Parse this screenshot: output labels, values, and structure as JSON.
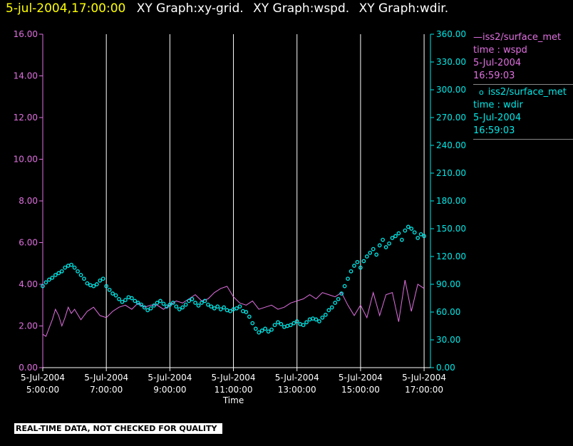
{
  "header": {
    "timestamp": "5-jul-2004,17:00:00",
    "graphs": [
      "XY Graph:xy-grid.",
      "XY Graph:wspd.",
      "XY Graph:wdir."
    ]
  },
  "legend": [
    {
      "marker": "—",
      "name": "iss2/surface_met",
      "field": "time : wspd",
      "date": "5-Jul-2004",
      "time": "16:59:03",
      "color": "#e070e0"
    },
    {
      "marker": "o",
      "name": "iss2/surface_met",
      "field": "time : wdir",
      "date": "5-Jul-2004",
      "time": "16:59:03",
      "color": "#00e8e8"
    }
  ],
  "footer": {
    "quality_note": "REAL-TIME DATA, NOT CHECKED FOR QUALITY"
  },
  "chart_data": {
    "type": "line",
    "xlabel": "Time",
    "x_ticks": [
      {
        "date": "5-Jul-2004",
        "time": "5:00:00"
      },
      {
        "date": "5-Jul-2004",
        "time": "7:00:00"
      },
      {
        "date": "5-Jul-2004",
        "time": "9:00:00"
      },
      {
        "date": "5-Jul-2004",
        "time": "11:00:00"
      },
      {
        "date": "5-Jul-2004",
        "time": "13:00:00"
      },
      {
        "date": "5-Jul-2004",
        "time": "15:00:00"
      },
      {
        "date": "5-Jul-2004",
        "time": "17:00:00"
      }
    ],
    "x_tick_hours": [
      5,
      7,
      9,
      11,
      13,
      15,
      17
    ],
    "xlim_hours": [
      5,
      17.2
    ],
    "vertical_grid": true,
    "y_left": {
      "ylim": [
        0,
        16
      ],
      "ticks": [
        "0.00",
        "2.00",
        "4.00",
        "6.00",
        "8.00",
        "10.00",
        "12.00",
        "14.00",
        "16.00"
      ],
      "color": "#e070e0"
    },
    "y_right": {
      "ylim": [
        0,
        360
      ],
      "ticks": [
        "0.00",
        "30.00",
        "60.00",
        "90.00",
        "120.00",
        "150.00",
        "180.00",
        "210.00",
        "240.00",
        "270.00",
        "300.00",
        "330.00",
        "360.00"
      ],
      "color": "#00e8e8"
    },
    "series": [
      {
        "name": "time : wspd",
        "axis": "left",
        "style": "line",
        "color": "#e070e0",
        "x": [
          5.0,
          5.1,
          5.2,
          5.3,
          5.4,
          5.5,
          5.6,
          5.7,
          5.8,
          5.9,
          6.0,
          6.2,
          6.4,
          6.6,
          6.8,
          7.0,
          7.2,
          7.4,
          7.6,
          7.8,
          8.0,
          8.2,
          8.4,
          8.6,
          8.8,
          9.0,
          9.2,
          9.4,
          9.6,
          9.8,
          10.0,
          10.2,
          10.4,
          10.6,
          10.8,
          11.0,
          11.2,
          11.4,
          11.6,
          11.8,
          12.0,
          12.2,
          12.4,
          12.6,
          12.8,
          13.0,
          13.2,
          13.4,
          13.6,
          13.8,
          14.0,
          14.2,
          14.4,
          14.6,
          14.8,
          15.0,
          15.2,
          15.4,
          15.6,
          15.8,
          16.0,
          16.2,
          16.4,
          16.6,
          16.8,
          17.0
        ],
        "values": [
          1.6,
          1.5,
          1.9,
          2.3,
          2.8,
          2.5,
          2.0,
          2.4,
          2.9,
          2.6,
          2.8,
          2.3,
          2.7,
          2.9,
          2.5,
          2.4,
          2.7,
          2.9,
          3.0,
          2.8,
          3.1,
          2.9,
          3.0,
          3.0,
          2.8,
          3.0,
          3.2,
          3.1,
          3.3,
          3.5,
          3.2,
          3.3,
          3.6,
          3.8,
          3.9,
          3.4,
          3.1,
          3.0,
          3.2,
          2.8,
          2.9,
          3.0,
          2.8,
          2.9,
          3.1,
          3.2,
          3.3,
          3.5,
          3.3,
          3.6,
          3.5,
          3.4,
          3.6,
          3.0,
          2.5,
          3.0,
          2.4,
          3.6,
          2.5,
          3.5,
          3.6,
          2.2,
          4.2,
          2.7,
          4.0,
          3.8
        ]
      },
      {
        "name": "time : wdir",
        "axis": "right",
        "style": "points",
        "color": "#00e8e8",
        "x": [
          5.0,
          5.1,
          5.2,
          5.3,
          5.4,
          5.5,
          5.6,
          5.7,
          5.8,
          5.9,
          6.0,
          6.1,
          6.2,
          6.3,
          6.4,
          6.5,
          6.6,
          6.7,
          6.8,
          6.9,
          7.0,
          7.1,
          7.2,
          7.3,
          7.4,
          7.5,
          7.6,
          7.7,
          7.8,
          7.9,
          8.0,
          8.1,
          8.2,
          8.3,
          8.4,
          8.5,
          8.6,
          8.7,
          8.8,
          8.9,
          9.0,
          9.1,
          9.2,
          9.3,
          9.4,
          9.5,
          9.6,
          9.7,
          9.8,
          9.9,
          10.0,
          10.1,
          10.2,
          10.3,
          10.4,
          10.5,
          10.6,
          10.7,
          10.8,
          10.9,
          11.0,
          11.1,
          11.2,
          11.3,
          11.4,
          11.5,
          11.6,
          11.7,
          11.8,
          11.9,
          12.0,
          12.1,
          12.2,
          12.3,
          12.4,
          12.5,
          12.6,
          12.7,
          12.8,
          12.9,
          13.0,
          13.1,
          13.2,
          13.3,
          13.4,
          13.5,
          13.6,
          13.7,
          13.8,
          13.9,
          14.0,
          14.1,
          14.2,
          14.3,
          14.4,
          14.5,
          14.6,
          14.7,
          14.8,
          14.9,
          15.0,
          15.1,
          15.2,
          15.3,
          15.4,
          15.5,
          15.6,
          15.7,
          15.8,
          15.9,
          16.0,
          16.1,
          16.2,
          16.3,
          16.4,
          16.5,
          16.6,
          16.7,
          16.8,
          16.9,
          17.0
        ],
        "values": [
          88,
          92,
          95,
          97,
          100,
          102,
          104,
          108,
          110,
          111,
          108,
          104,
          100,
          96,
          91,
          89,
          88,
          90,
          94,
          96,
          88,
          84,
          80,
          78,
          74,
          71,
          73,
          76,
          75,
          72,
          70,
          68,
          65,
          62,
          64,
          67,
          70,
          72,
          69,
          66,
          68,
          70,
          66,
          63,
          65,
          68,
          72,
          74,
          70,
          67,
          70,
          72,
          68,
          66,
          64,
          66,
          63,
          65,
          62,
          61,
          63,
          64,
          66,
          61,
          60,
          55,
          48,
          42,
          38,
          40,
          42,
          39,
          41,
          46,
          49,
          47,
          44,
          45,
          46,
          48,
          50,
          47,
          46,
          49,
          52,
          53,
          52,
          50,
          54,
          57,
          62,
          65,
          70,
          74,
          80,
          88,
          96,
          104,
          110,
          114,
          108,
          115,
          120,
          124,
          128,
          122,
          132,
          138,
          130,
          134,
          140,
          142,
          145,
          138,
          148,
          152,
          150,
          146,
          140,
          144,
          142
        ]
      }
    ]
  }
}
